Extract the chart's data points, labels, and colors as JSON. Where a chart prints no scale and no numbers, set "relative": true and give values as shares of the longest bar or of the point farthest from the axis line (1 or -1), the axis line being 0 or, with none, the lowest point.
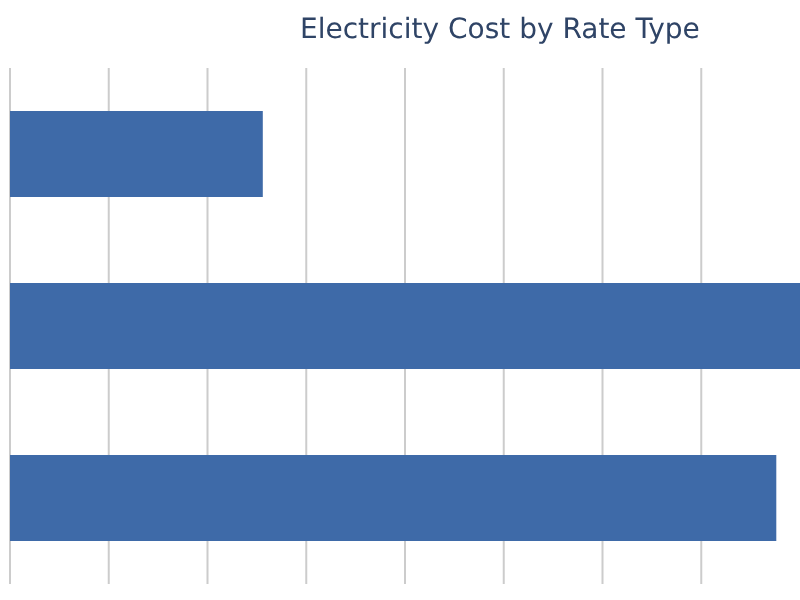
{
  "chart_data": {
    "type": "bar",
    "title": "Electricity Cost by Rate Type",
    "orientation": "horizontal",
    "relative": true,
    "categories": [
      null,
      null,
      null
    ],
    "values": [
      0.32,
      1,
      0.97
    ],
    "color": "#3e6aa8",
    "grid": "x"
  }
}
